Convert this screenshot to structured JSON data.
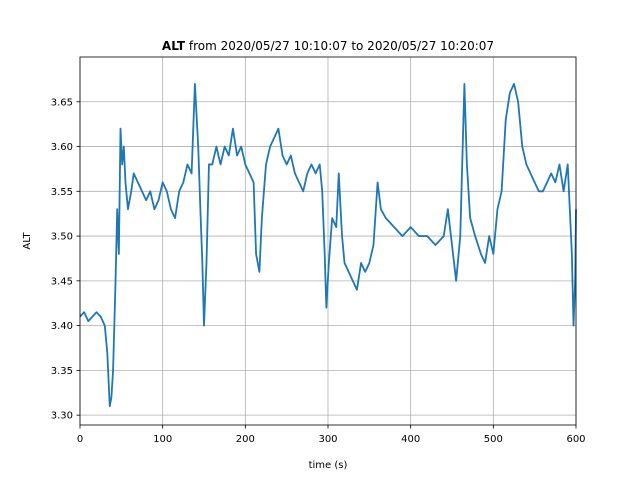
{
  "chart_data": {
    "type": "line",
    "title_bold": "ALT",
    "title": "from 2020/05/27 10:10:07 to 2020/05/27 10:20:07",
    "xlabel": "time (s)",
    "ylabel": "ALT",
    "xlim": [
      0,
      600
    ],
    "xticks": [
      0,
      100,
      200,
      300,
      400,
      500,
      600
    ],
    "ylim": [
      3.289,
      3.7
    ],
    "yticks": [
      {
        "value": 3.3,
        "label": "3.30"
      },
      {
        "value": 3.35,
        "label": "3.35"
      },
      {
        "value": 3.4,
        "label": "3.40"
      },
      {
        "value": 3.45,
        "label": "3.45"
      },
      {
        "value": 3.5,
        "label": "3.50"
      },
      {
        "value": 3.55,
        "label": "3.55"
      },
      {
        "value": 3.6,
        "label": "3.60"
      },
      {
        "value": 3.65,
        "label": "3.65"
      }
    ],
    "grid": true,
    "series": [
      {
        "color": "#1f77b4",
        "x": [
          0,
          5,
          10,
          15,
          20,
          25,
          30,
          33,
          36,
          38,
          40,
          43,
          45,
          47,
          49,
          51,
          53,
          55,
          58,
          62,
          65,
          70,
          75,
          80,
          85,
          90,
          95,
          100,
          105,
          110,
          115,
          120,
          125,
          130,
          135,
          139,
          143,
          146,
          148,
          150,
          153,
          156,
          160,
          165,
          170,
          175,
          180,
          185,
          190,
          195,
          200,
          205,
          210,
          213,
          217,
          220,
          225,
          230,
          235,
          240,
          245,
          250,
          255,
          260,
          265,
          270,
          275,
          280,
          285,
          290,
          293,
          296,
          298,
          301,
          305,
          310,
          313,
          317,
          320,
          325,
          330,
          335,
          340,
          345,
          350,
          355,
          360,
          364,
          370,
          380,
          390,
          400,
          410,
          420,
          430,
          440,
          445,
          450,
          455,
          460,
          465,
          468,
          472,
          478,
          485,
          490,
          495,
          500,
          505,
          510,
          515,
          520,
          525,
          530,
          535,
          540,
          545,
          550,
          555,
          560,
          565,
          570,
          575,
          580,
          585,
          590,
          595,
          597,
          599,
          600
        ],
        "values": [
          3.41,
          3.415,
          3.405,
          3.41,
          3.415,
          3.41,
          3.4,
          3.37,
          3.31,
          3.32,
          3.35,
          3.45,
          3.53,
          3.48,
          3.62,
          3.58,
          3.6,
          3.56,
          3.53,
          3.55,
          3.57,
          3.56,
          3.55,
          3.54,
          3.55,
          3.53,
          3.54,
          3.56,
          3.55,
          3.53,
          3.52,
          3.55,
          3.56,
          3.58,
          3.57,
          3.67,
          3.6,
          3.52,
          3.47,
          3.4,
          3.47,
          3.58,
          3.58,
          3.6,
          3.58,
          3.6,
          3.59,
          3.62,
          3.59,
          3.6,
          3.58,
          3.57,
          3.56,
          3.48,
          3.46,
          3.52,
          3.58,
          3.6,
          3.61,
          3.62,
          3.59,
          3.58,
          3.59,
          3.57,
          3.56,
          3.55,
          3.57,
          3.58,
          3.57,
          3.58,
          3.55,
          3.48,
          3.42,
          3.47,
          3.52,
          3.51,
          3.57,
          3.5,
          3.47,
          3.46,
          3.45,
          3.44,
          3.47,
          3.46,
          3.47,
          3.49,
          3.56,
          3.53,
          3.52,
          3.51,
          3.5,
          3.51,
          3.5,
          3.5,
          3.49,
          3.5,
          3.53,
          3.49,
          3.45,
          3.5,
          3.67,
          3.58,
          3.52,
          3.5,
          3.48,
          3.47,
          3.5,
          3.48,
          3.53,
          3.55,
          3.63,
          3.66,
          3.67,
          3.65,
          3.6,
          3.58,
          3.57,
          3.56,
          3.55,
          3.55,
          3.56,
          3.57,
          3.56,
          3.58,
          3.55,
          3.58,
          3.48,
          3.4,
          3.45,
          3.53
        ]
      }
    ]
  }
}
